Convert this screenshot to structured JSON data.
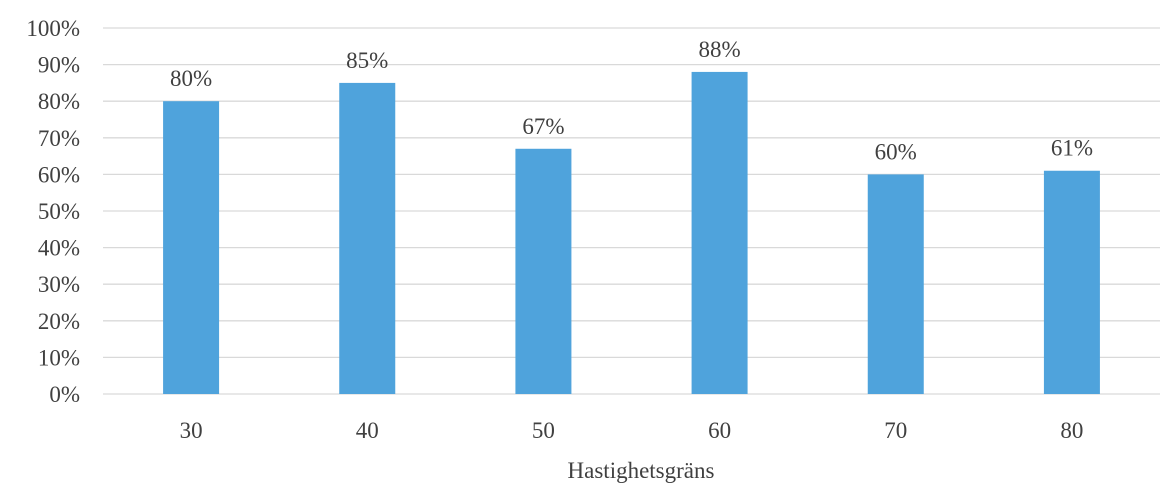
{
  "chart_data": {
    "type": "bar",
    "categories": [
      "30",
      "40",
      "50",
      "60",
      "70",
      "80"
    ],
    "values": [
      80,
      85,
      67,
      88,
      60,
      61
    ],
    "data_labels": [
      "80%",
      "85%",
      "67%",
      "88%",
      "60%",
      "61%"
    ],
    "title": "",
    "xlabel": "Hastighetsgräns",
    "ylabel": "",
    "ylim": [
      0,
      100
    ],
    "ytick_step": 10,
    "ytick_labels": [
      "0%",
      "10%",
      "20%",
      "30%",
      "40%",
      "50%",
      "60%",
      "70%",
      "80%",
      "90%",
      "100%"
    ],
    "grid": true,
    "legend": "none",
    "bar_color": "#4FA3DC",
    "grid_color": "#D9D9D9",
    "text_color": "#404040"
  }
}
